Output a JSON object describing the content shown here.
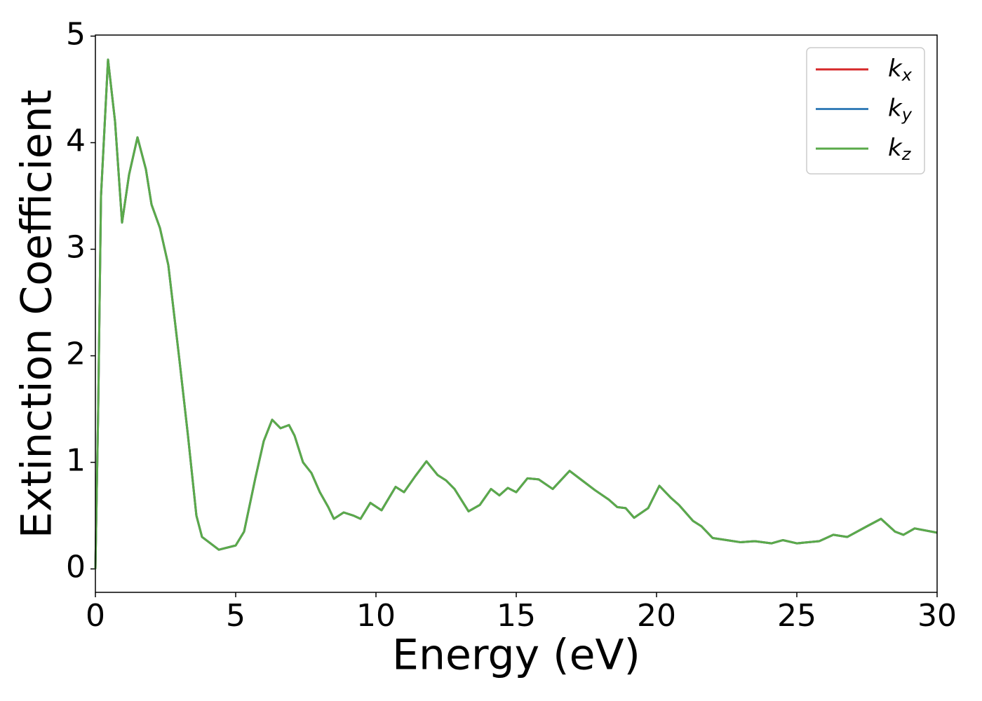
{
  "chart_data": {
    "type": "line",
    "xlabel": "Energy (eV)",
    "ylabel": "Extinction Coefficient",
    "x": [
      0,
      0.1,
      0.2,
      0.45,
      0.7,
      0.95,
      1.2,
      1.5,
      1.8,
      2.0,
      2.3,
      2.6,
      3.0,
      3.3,
      3.6,
      3.8,
      4.1,
      4.4,
      5.0,
      5.3,
      5.7,
      6.0,
      6.3,
      6.6,
      6.9,
      7.1,
      7.4,
      7.7,
      8.0,
      8.3,
      8.5,
      8.85,
      9.2,
      9.45,
      9.8,
      10.2,
      10.7,
      11.0,
      11.4,
      11.8,
      12.2,
      12.5,
      12.8,
      13.3,
      13.7,
      14.1,
      14.4,
      14.7,
      15.0,
      15.4,
      15.8,
      16.3,
      16.9,
      17.3,
      17.8,
      18.3,
      18.6,
      18.9,
      19.2,
      19.7,
      20.1,
      20.5,
      20.8,
      21.3,
      21.6,
      22.0,
      22.5,
      23.0,
      23.5,
      24.1,
      24.5,
      25.0,
      25.8,
      26.3,
      26.8,
      27.5,
      28.0,
      28.5,
      28.8,
      29.2,
      30.0
    ],
    "series": [
      {
        "name": "kx",
        "color": "#d62728",
        "values": [
          0,
          1.5,
          3.5,
          4.78,
          4.2,
          3.25,
          3.7,
          4.05,
          3.75,
          3.42,
          3.2,
          2.85,
          1.95,
          1.25,
          0.5,
          0.3,
          0.24,
          0.18,
          0.22,
          0.35,
          0.85,
          1.2,
          1.4,
          1.32,
          1.35,
          1.25,
          1.0,
          0.9,
          0.72,
          0.58,
          0.47,
          0.53,
          0.5,
          0.47,
          0.62,
          0.55,
          0.77,
          0.72,
          0.87,
          1.01,
          0.88,
          0.83,
          0.75,
          0.54,
          0.6,
          0.75,
          0.69,
          0.76,
          0.72,
          0.85,
          0.84,
          0.75,
          0.92,
          0.84,
          0.74,
          0.65,
          0.58,
          0.57,
          0.48,
          0.57,
          0.78,
          0.67,
          0.6,
          0.45,
          0.4,
          0.29,
          0.27,
          0.25,
          0.26,
          0.24,
          0.27,
          0.24,
          0.26,
          0.32,
          0.3,
          0.4,
          0.47,
          0.35,
          0.32,
          0.38,
          0.34
        ]
      },
      {
        "name": "ky",
        "color": "#377eb8",
        "values": [
          0,
          1.5,
          3.5,
          4.78,
          4.2,
          3.25,
          3.7,
          4.05,
          3.75,
          3.42,
          3.2,
          2.85,
          1.95,
          1.25,
          0.5,
          0.3,
          0.24,
          0.18,
          0.22,
          0.35,
          0.85,
          1.2,
          1.4,
          1.32,
          1.35,
          1.25,
          1.0,
          0.9,
          0.72,
          0.58,
          0.47,
          0.53,
          0.5,
          0.47,
          0.62,
          0.55,
          0.77,
          0.72,
          0.87,
          1.01,
          0.88,
          0.83,
          0.75,
          0.54,
          0.6,
          0.75,
          0.69,
          0.76,
          0.72,
          0.85,
          0.84,
          0.75,
          0.92,
          0.84,
          0.74,
          0.65,
          0.58,
          0.57,
          0.48,
          0.57,
          0.78,
          0.67,
          0.6,
          0.45,
          0.4,
          0.29,
          0.27,
          0.25,
          0.26,
          0.24,
          0.27,
          0.24,
          0.26,
          0.32,
          0.3,
          0.4,
          0.47,
          0.35,
          0.32,
          0.38,
          0.34
        ]
      },
      {
        "name": "kz",
        "color": "#5aaa4a",
        "values": [
          0,
          1.5,
          3.5,
          4.78,
          4.2,
          3.25,
          3.7,
          4.05,
          3.75,
          3.42,
          3.2,
          2.85,
          1.95,
          1.25,
          0.5,
          0.3,
          0.24,
          0.18,
          0.22,
          0.35,
          0.85,
          1.2,
          1.4,
          1.32,
          1.35,
          1.25,
          1.0,
          0.9,
          0.72,
          0.58,
          0.47,
          0.53,
          0.5,
          0.47,
          0.62,
          0.55,
          0.77,
          0.72,
          0.87,
          1.01,
          0.88,
          0.83,
          0.75,
          0.54,
          0.6,
          0.75,
          0.69,
          0.76,
          0.72,
          0.85,
          0.84,
          0.75,
          0.92,
          0.84,
          0.74,
          0.65,
          0.58,
          0.57,
          0.48,
          0.57,
          0.78,
          0.67,
          0.6,
          0.45,
          0.4,
          0.29,
          0.27,
          0.25,
          0.26,
          0.24,
          0.27,
          0.24,
          0.26,
          0.32,
          0.3,
          0.4,
          0.47,
          0.35,
          0.32,
          0.38,
          0.34
        ]
      }
    ],
    "xlim": [
      0,
      30
    ],
    "xticks": [
      0,
      5,
      10,
      15,
      20,
      25,
      30
    ],
    "ylim": [
      -0.22,
      5.01
    ],
    "yticks": [
      0,
      1,
      2,
      3,
      4,
      5
    ],
    "grid": false,
    "legend": "upper right"
  }
}
